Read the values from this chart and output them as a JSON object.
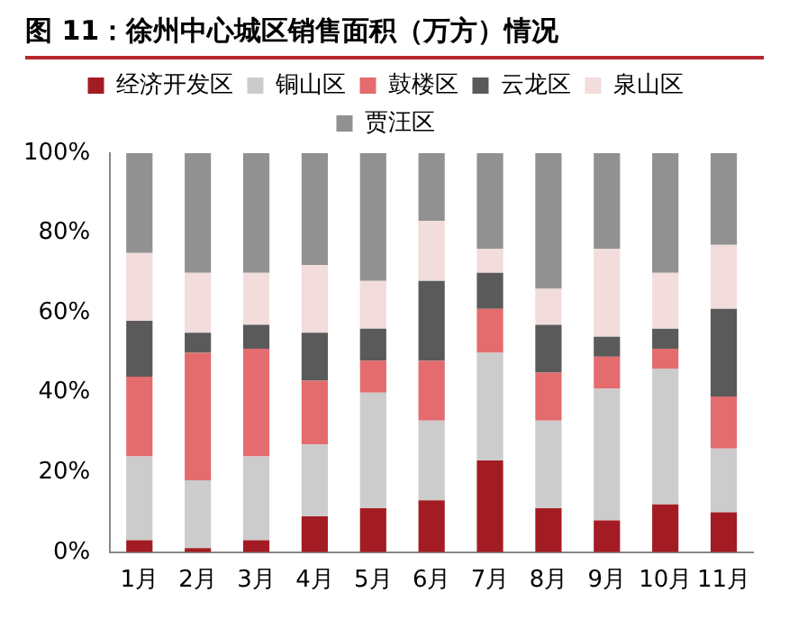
{
  "chart_data": {
    "type": "bar",
    "stacked": true,
    "title": "图 11：徐州中心城区销售面积（万方）情况",
    "categories": [
      "1月",
      "2月",
      "3月",
      "4月",
      "5月",
      "6月",
      "7月",
      "8月",
      "9月",
      "10月",
      "11月"
    ],
    "series": [
      {
        "name": "经济开发区",
        "color": "#a31c23",
        "values": [
          3,
          1,
          3,
          9,
          11,
          13,
          23,
          11,
          8,
          12,
          10
        ]
      },
      {
        "name": "铜山区",
        "color": "#cccccc",
        "values": [
          21,
          17,
          21,
          18,
          29,
          20,
          27,
          22,
          33,
          34,
          16
        ]
      },
      {
        "name": "鼓楼区",
        "color": "#e46c6e",
        "values": [
          20,
          32,
          27,
          16,
          8,
          15,
          11,
          12,
          8,
          5,
          13
        ]
      },
      {
        "name": "云龙区",
        "color": "#5a5a5a",
        "values": [
          14,
          5,
          6,
          12,
          8,
          20,
          9,
          12,
          5,
          5,
          22
        ]
      },
      {
        "name": "泉山区",
        "color": "#f2dcdc",
        "values": [
          17,
          15,
          13,
          17,
          12,
          15,
          6,
          9,
          22,
          14,
          16
        ]
      },
      {
        "name": "贾汪区",
        "color": "#919191",
        "values": [
          25,
          30,
          30,
          28,
          32,
          17,
          24,
          34,
          24,
          30,
          23
        ]
      }
    ],
    "ylim": [
      0,
      100
    ],
    "yticks": [
      {
        "value": 0,
        "label": "0%"
      },
      {
        "value": 20,
        "label": "20%"
      },
      {
        "value": 40,
        "label": "40%"
      },
      {
        "value": 60,
        "label": "60%"
      },
      {
        "value": 80,
        "label": "80%"
      },
      {
        "value": 100,
        "label": "100%"
      }
    ],
    "grid": false,
    "legend": "top"
  }
}
